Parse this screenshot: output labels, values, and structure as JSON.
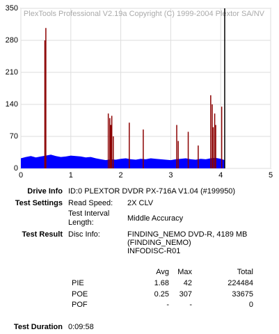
{
  "chart_data": {
    "type": "pie-scan",
    "watermark": "PlexTools Professional V2.19a Copyright (C) 1999-2004 Plextor SA/NV",
    "xlim": [
      0,
      5
    ],
    "xticks": [
      0,
      1,
      2,
      3,
      4,
      5
    ],
    "ylim": [
      0,
      350
    ],
    "yticks": [
      0,
      70,
      140,
      210,
      280,
      350
    ],
    "grid": true,
    "end_marker": 4.08,
    "series": [
      {
        "color": "#0000ff",
        "x": [
          0,
          0.1,
          0.2,
          0.3,
          0.4,
          0.5,
          0.6,
          0.7,
          0.8,
          0.9,
          1.0,
          1.1,
          1.2,
          1.3,
          1.4,
          1.5,
          1.6,
          1.7,
          1.8,
          1.9,
          2.0,
          2.1,
          2.2,
          2.3,
          2.4,
          2.5,
          2.6,
          2.7,
          2.8,
          2.9,
          3.0,
          3.1,
          3.2,
          3.3,
          3.4,
          3.5,
          3.6,
          3.7,
          3.8,
          3.9,
          4.0,
          4.08
        ],
        "values": [
          22,
          25,
          27,
          24,
          26,
          28,
          30,
          27,
          25,
          26,
          28,
          27,
          26,
          24,
          25,
          22,
          20,
          18,
          20,
          19,
          21,
          22,
          20,
          19,
          21,
          20,
          22,
          21,
          20,
          19,
          18,
          20,
          21,
          22,
          20,
          19,
          21,
          20,
          22,
          23,
          21,
          18
        ]
      },
      {
        "color": "#8b0000",
        "x": [
          0.48,
          0.5,
          1.75,
          1.78,
          1.8,
          1.82,
          1.85,
          2.17,
          2.45,
          3.12,
          3.15,
          3.35,
          3.55,
          3.8,
          3.83,
          3.85,
          3.88,
          3.9,
          4.02
        ],
        "values": [
          280,
          307,
          120,
          110,
          95,
          115,
          70,
          100,
          85,
          95,
          60,
          80,
          50,
          160,
          140,
          90,
          120,
          95,
          135
        ]
      }
    ]
  },
  "info": {
    "drive_info": {
      "label": "Drive Info",
      "value": "ID:0 PLEXTOR DVDR PX-716A V1.04 (#199950)"
    },
    "test_settings": {
      "label": "Test Settings",
      "rows": [
        [
          "Read Speed:",
          "2X CLV"
        ],
        [
          "Test Interval Length:",
          "Middle Accuracy"
        ]
      ]
    },
    "test_result": {
      "label": "Test Result",
      "disc_label": "Disc Info:",
      "disc_lines": [
        "FINDING_NEMO DVD-R, 4189 MB",
        "(FINDING_NEMO)",
        "INFODISC-R01"
      ]
    },
    "stats": {
      "header": [
        "Avg",
        "Max",
        "Total"
      ],
      "rows": [
        [
          "PIE",
          1.68,
          42,
          224484
        ],
        [
          "POE",
          0.25,
          307,
          33675
        ],
        [
          "POF",
          "-",
          "-",
          0
        ]
      ]
    },
    "test_duration": {
      "label": "Test Duration",
      "value": "0:09:58"
    }
  }
}
